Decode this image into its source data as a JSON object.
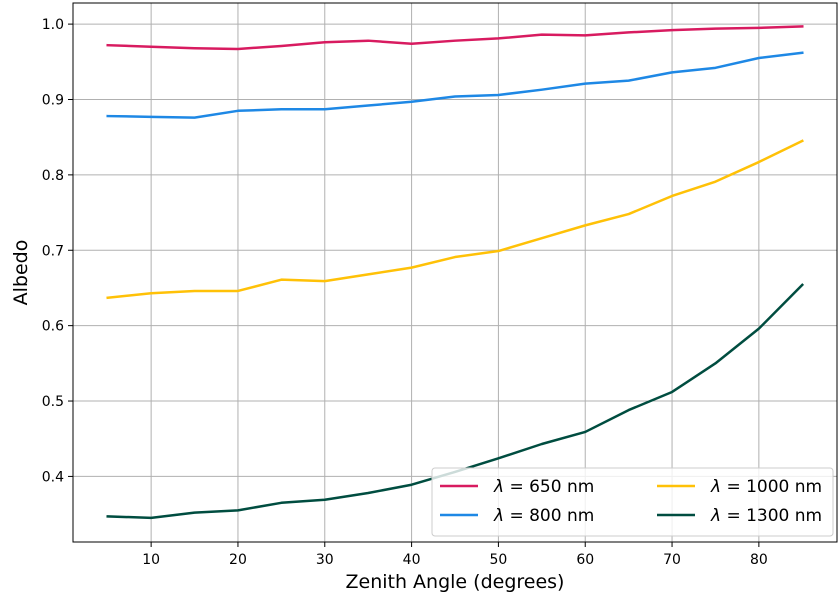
{
  "chart_data": {
    "type": "line",
    "title": "",
    "xlabel": "Zenith Angle (degrees)",
    "ylabel": "Albedo",
    "xlim": [
      1,
      89
    ],
    "ylim": [
      0.313,
      1.028
    ],
    "xticks": [
      10,
      20,
      30,
      40,
      50,
      60,
      70,
      80
    ],
    "yticks": [
      0.4,
      0.5,
      0.6,
      0.7,
      0.8,
      0.9,
      1.0
    ],
    "xtick_labels": [
      "10",
      "20",
      "30",
      "40",
      "50",
      "60",
      "70",
      "80"
    ],
    "ytick_labels": [
      "0.4",
      "0.5",
      "0.6",
      "0.7",
      "0.8",
      "0.9",
      "1.0"
    ],
    "grid": true,
    "legend_position": "lower-right",
    "legend_columns": 2,
    "x": [
      5,
      10,
      15,
      20,
      25,
      30,
      35,
      40,
      45,
      50,
      55,
      60,
      65,
      70,
      75,
      80,
      85
    ],
    "series": [
      {
        "name": "λ = 650 nm",
        "legend_symbol": "λ",
        "legend_text": " = 650 nm",
        "color": "#d81b60",
        "values": [
          0.972,
          0.97,
          0.968,
          0.967,
          0.971,
          0.976,
          0.978,
          0.974,
          0.978,
          0.981,
          0.986,
          0.985,
          0.989,
          0.992,
          0.994,
          0.995,
          0.997
        ]
      },
      {
        "name": "λ = 800 nm",
        "legend_symbol": "λ",
        "legend_text": " = 800 nm",
        "color": "#1e88e5",
        "values": [
          0.878,
          0.877,
          0.876,
          0.885,
          0.887,
          0.887,
          0.892,
          0.897,
          0.904,
          0.906,
          0.913,
          0.921,
          0.925,
          0.936,
          0.942,
          0.955,
          0.962
        ]
      },
      {
        "name": "λ = 1000 nm",
        "legend_symbol": "λ",
        "legend_text": " = 1000 nm",
        "color": "#ffc107",
        "values": [
          0.637,
          0.643,
          0.646,
          0.646,
          0.661,
          0.659,
          0.668,
          0.677,
          0.691,
          0.699,
          0.716,
          0.733,
          0.748,
          0.772,
          0.791,
          0.817,
          0.845
        ]
      },
      {
        "name": "λ = 1300 nm",
        "legend_symbol": "λ",
        "legend_text": " = 1300 nm",
        "color": "#004d40",
        "values": [
          0.347,
          0.345,
          0.352,
          0.355,
          0.365,
          0.369,
          0.378,
          0.389,
          0.406,
          0.424,
          0.443,
          0.459,
          0.488,
          0.512,
          0.55,
          0.596,
          0.654
        ]
      }
    ]
  }
}
